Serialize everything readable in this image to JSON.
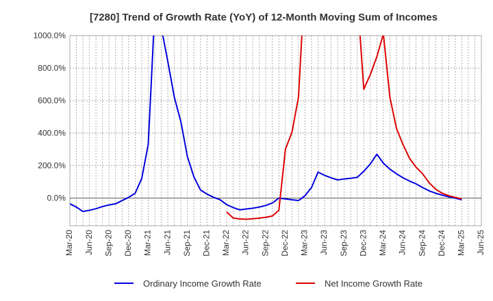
{
  "chart_data": {
    "type": "line",
    "title": "[7280]  Trend of Growth Rate (YoY) of 12-Month Moving Sum of Incomes",
    "xlabel": "",
    "ylabel": "",
    "ylim": [
      -170,
      1000
    ],
    "yticks": [
      0,
      200,
      400,
      600,
      800,
      1000
    ],
    "ytick_labels": [
      "0.0%",
      "200.0%",
      "400.0%",
      "600.0%",
      "800.0%",
      "1000.0%"
    ],
    "x_tick_labels": [
      "Mar-20",
      "Jun-20",
      "Sep-20",
      "Dec-20",
      "Mar-21",
      "Jun-21",
      "Sep-21",
      "Dec-21",
      "Mar-22",
      "Jun-22",
      "Sep-22",
      "Dec-22",
      "Mar-23",
      "Jun-23",
      "Sep-23",
      "Dec-23",
      "Mar-24",
      "Jun-24",
      "Sep-24",
      "Dec-24",
      "Mar-25",
      "Jun-25"
    ],
    "grid": true,
    "legend_position": "bottom",
    "series": [
      {
        "name": "Ordinary Income Growth Rate",
        "color": "#0000dd",
        "points": [
          [
            0,
            -35
          ],
          [
            1,
            -55
          ],
          [
            2,
            -82
          ],
          [
            3,
            -75
          ],
          [
            4,
            -65
          ],
          [
            5,
            -52
          ],
          [
            6,
            -42
          ],
          [
            7,
            -35
          ],
          [
            8,
            -15
          ],
          [
            9,
            5
          ],
          [
            10,
            30
          ],
          [
            11,
            120
          ],
          [
            12,
            330
          ],
          [
            13,
            1150
          ],
          [
            14,
            1050
          ],
          [
            15,
            840
          ],
          [
            16,
            620
          ],
          [
            17,
            470
          ],
          [
            18,
            255
          ],
          [
            19,
            130
          ],
          [
            20,
            50
          ],
          [
            21,
            25
          ],
          [
            22,
            5
          ],
          [
            23,
            -10
          ],
          [
            24,
            -40
          ],
          [
            25,
            -58
          ],
          [
            26,
            -72
          ],
          [
            27,
            -67
          ],
          [
            28,
            -62
          ],
          [
            29,
            -55
          ],
          [
            30,
            -45
          ],
          [
            31,
            -30
          ],
          [
            32,
            0
          ],
          [
            33,
            -5
          ],
          [
            34,
            -10
          ],
          [
            35,
            -15
          ],
          [
            36,
            15
          ],
          [
            37,
            65
          ],
          [
            38,
            160
          ],
          [
            39,
            140
          ],
          [
            40,
            125
          ],
          [
            41,
            112
          ],
          [
            42,
            118
          ],
          [
            43,
            122
          ],
          [
            44,
            128
          ],
          [
            45,
            165
          ],
          [
            46,
            210
          ],
          [
            47,
            270
          ],
          [
            48,
            215
          ],
          [
            49,
            178
          ],
          [
            50,
            150
          ],
          [
            51,
            125
          ],
          [
            52,
            105
          ],
          [
            53,
            88
          ],
          [
            54,
            65
          ],
          [
            55,
            45
          ],
          [
            56,
            30
          ],
          [
            57,
            18
          ],
          [
            58,
            8
          ],
          [
            59,
            0
          ],
          [
            60,
            -10
          ]
        ]
      },
      {
        "name": "Net Income Growth Rate",
        "color": "#dd0000",
        "points": [
          [
            24,
            -85
          ],
          [
            25,
            -122
          ],
          [
            26,
            -128
          ],
          [
            27,
            -130
          ],
          [
            28,
            -127
          ],
          [
            29,
            -123
          ],
          [
            30,
            -118
          ],
          [
            31,
            -110
          ],
          [
            32,
            -75
          ],
          [
            33,
            300
          ],
          [
            34,
            405
          ],
          [
            35,
            620
          ],
          [
            36,
            1350
          ],
          [
            44,
            1250
          ],
          [
            45,
            670
          ],
          [
            46,
            760
          ],
          [
            47,
            870
          ],
          [
            48,
            1010
          ],
          [
            49,
            620
          ],
          [
            50,
            430
          ],
          [
            51,
            330
          ],
          [
            52,
            245
          ],
          [
            53,
            190
          ],
          [
            54,
            150
          ],
          [
            55,
            95
          ],
          [
            56,
            55
          ],
          [
            57,
            30
          ],
          [
            58,
            15
          ],
          [
            59,
            5
          ],
          [
            60,
            -5
          ]
        ]
      }
    ]
  }
}
